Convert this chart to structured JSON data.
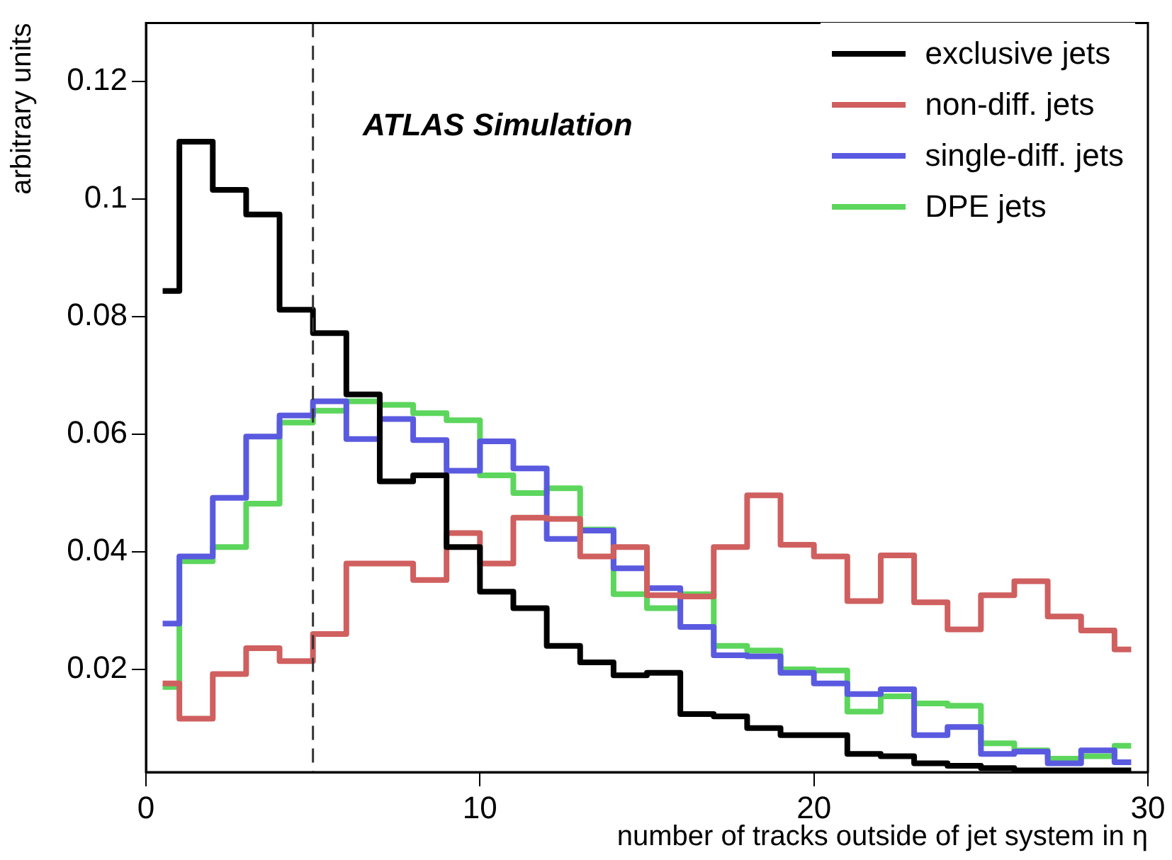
{
  "chart_data": {
    "type": "step",
    "xlabel": "number of tracks outside of jet system in η",
    "ylabel": "arbitrary units",
    "annotations": [
      "ATLAS Simulation"
    ],
    "x": [
      0.5,
      1.5,
      2.5,
      3.5,
      4.5,
      5.5,
      6.5,
      7.5,
      8.5,
      9.5,
      10.5,
      11.5,
      12.5,
      13.5,
      14.5,
      15.5,
      16.5,
      17.5,
      18.5,
      19.5,
      20.5,
      21.5,
      22.5,
      23.5,
      24.5,
      25.5,
      26.5,
      27.5,
      28.5,
      29.5
    ],
    "series": [
      {
        "name": "exclusive jets",
        "color": "#000000",
        "values": [
          0.0844,
          0.1098,
          0.1016,
          0.0974,
          0.0812,
          0.0772,
          0.0668,
          0.052,
          0.053,
          0.0408,
          0.0332,
          0.0304,
          0.024,
          0.0212,
          0.019,
          0.0194,
          0.0124,
          0.012,
          0.01,
          0.0088,
          0.0088,
          0.0056,
          0.0052,
          0.004,
          0.0036,
          0.0032,
          0.0028,
          0.0028,
          0.0028,
          0.0028
        ]
      },
      {
        "name": "non-diff. jets",
        "color": "#d05f5f",
        "values": [
          0.0176,
          0.0116,
          0.0192,
          0.0236,
          0.0214,
          0.026,
          0.038,
          0.038,
          0.0352,
          0.0432,
          0.038,
          0.0458,
          0.0456,
          0.0392,
          0.0408,
          0.0326,
          0.0324,
          0.0408,
          0.0496,
          0.0412,
          0.0392,
          0.0316,
          0.0394,
          0.0314,
          0.0268,
          0.0326,
          0.035,
          0.029,
          0.0266,
          0.0234
        ]
      },
      {
        "name": "single-diff. jets",
        "color": "#5a5ae0",
        "values": [
          0.0278,
          0.0392,
          0.0492,
          0.0596,
          0.0632,
          0.0656,
          0.0592,
          0.0626,
          0.059,
          0.0538,
          0.0588,
          0.0542,
          0.0422,
          0.0436,
          0.0372,
          0.0338,
          0.0272,
          0.0224,
          0.0222,
          0.0194,
          0.0176,
          0.0158,
          0.0166,
          0.0088,
          0.0102,
          0.0056,
          0.006,
          0.004,
          0.0062,
          0.0042
        ]
      },
      {
        "name": "DPE jets",
        "color": "#5cd65c",
        "values": [
          0.017,
          0.0384,
          0.0408,
          0.0482,
          0.062,
          0.064,
          0.0656,
          0.065,
          0.0636,
          0.0624,
          0.053,
          0.05,
          0.0508,
          0.0438,
          0.0328,
          0.0304,
          0.0328,
          0.024,
          0.0232,
          0.02,
          0.0198,
          0.0128,
          0.0154,
          0.0142,
          0.0138,
          0.0074,
          0.0062,
          0.0048,
          0.0052,
          0.007
        ]
      }
    ],
    "xlim": [
      0,
      30
    ],
    "xticks": [
      0,
      10,
      20,
      30
    ],
    "ylim": [
      0.0025,
      0.13
    ],
    "yticks": [
      0.02,
      0.04,
      0.06,
      0.08,
      0.1,
      0.12
    ],
    "ref_lines": [
      {
        "axis": "x",
        "value": 5,
        "color": "#333333",
        "line_style": "dashed"
      }
    ],
    "legend": "top right",
    "grid": false,
    "line_style": "solid"
  }
}
